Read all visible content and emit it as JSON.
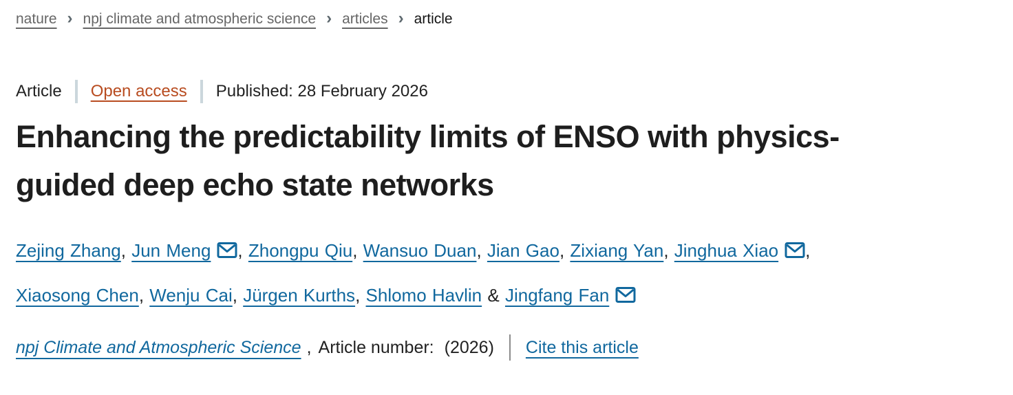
{
  "breadcrumb": {
    "chevron": "›",
    "items": [
      {
        "label": "nature",
        "current": false
      },
      {
        "label": "npj climate and atmospheric science",
        "current": false
      },
      {
        "label": "articles",
        "current": false
      },
      {
        "label": "article",
        "current": true
      }
    ]
  },
  "meta": {
    "type_label": "Article",
    "open_access_label": "Open access",
    "published_text": "Published: 28 February 2026"
  },
  "title": "Enhancing the predictability limits of ENSO with physics-guided deep echo state networks",
  "authors": {
    "separator": ",",
    "last_separator": "&",
    "line_break_after_index": 6,
    "list": [
      {
        "name": "Zejing Zhang",
        "email": false
      },
      {
        "name": "Jun Meng",
        "email": true
      },
      {
        "name": "Zhongpu Qiu",
        "email": false
      },
      {
        "name": "Wansuo Duan",
        "email": false
      },
      {
        "name": "Jian Gao",
        "email": false
      },
      {
        "name": "Zixiang Yan",
        "email": false
      },
      {
        "name": "Jinghua Xiao",
        "email": true
      },
      {
        "name": "Xiaosong Chen",
        "email": false
      },
      {
        "name": "Wenju Cai",
        "email": false
      },
      {
        "name": "Jürgen Kurths",
        "email": false
      },
      {
        "name": "Shlomo Havlin",
        "email": false
      },
      {
        "name": "Jingfang Fan",
        "email": true
      }
    ]
  },
  "footer": {
    "journal_name": "npj Climate and Atmospheric Science",
    "comma": ",",
    "article_number_label": "Article number:",
    "article_number_value": "(2026)",
    "cite_label": "Cite this article"
  },
  "icons": {
    "email": "envelope-icon",
    "breadcrumb_separator": "chevron-right-icon"
  },
  "colors": {
    "link_blue": "#11689E",
    "open_access_orange": "#B84C20",
    "breadcrumb_gray": "#666666",
    "text_dark": "#222222",
    "meta_divider": "#CBD7DC",
    "cite_divider": "#8C8C8C"
  }
}
